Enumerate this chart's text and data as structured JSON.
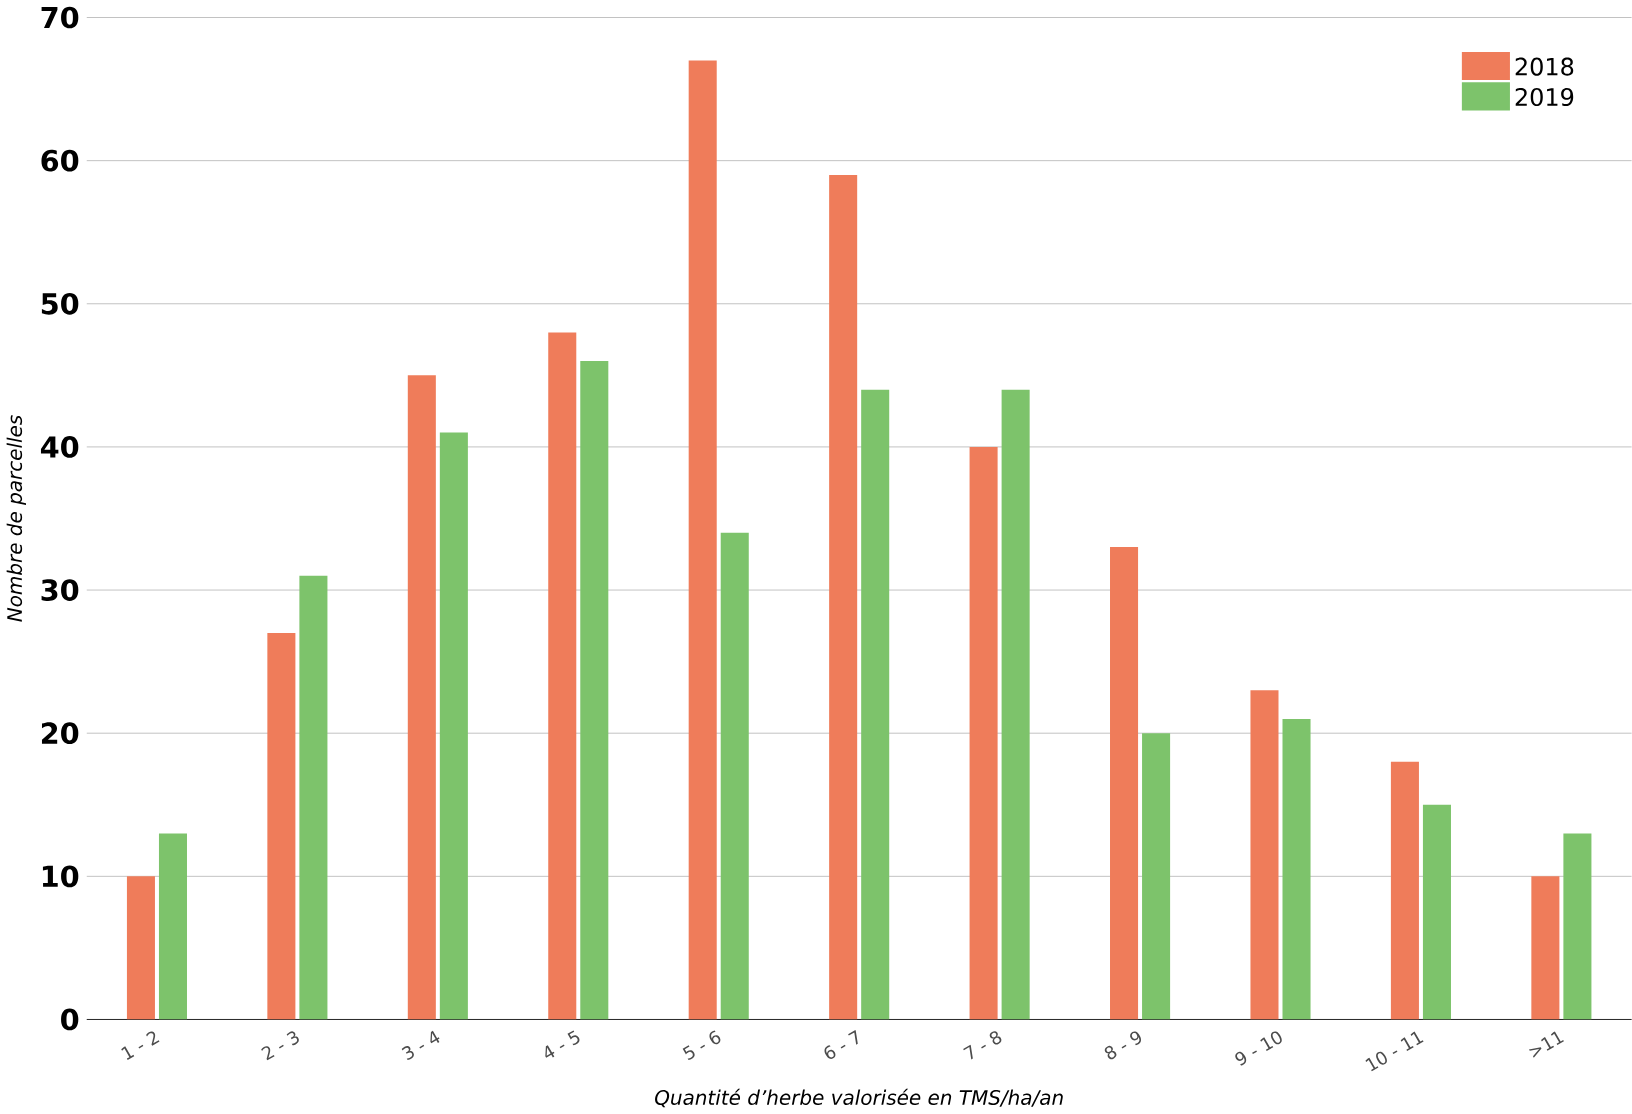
{
  "chart_data": {
    "type": "bar",
    "xlabel": "Quantité d’herbe valorisée en TMS/ha/an",
    "ylabel": "Nombre de parcelles",
    "categories": [
      "1 - 2",
      "2 - 3",
      "3 - 4",
      "4 - 5",
      "5 - 6",
      "6 - 7",
      "7 - 8",
      "8 - 9",
      "9 - 10",
      "10 - 11",
      ">11"
    ],
    "series": [
      {
        "name": "2018",
        "color": "#ef7c5a",
        "values": [
          10,
          27,
          45,
          48,
          67,
          59,
          40,
          33,
          23,
          18,
          10
        ]
      },
      {
        "name": "2019",
        "color": "#7dc36b",
        "values": [
          13,
          31,
          41,
          46,
          34,
          44,
          44,
          20,
          21,
          15,
          13
        ]
      }
    ],
    "ylim": [
      0,
      70
    ],
    "yticks": [
      0,
      10,
      20,
      30,
      40,
      50,
      60,
      70
    ],
    "grid": "y",
    "legend": "top right"
  }
}
